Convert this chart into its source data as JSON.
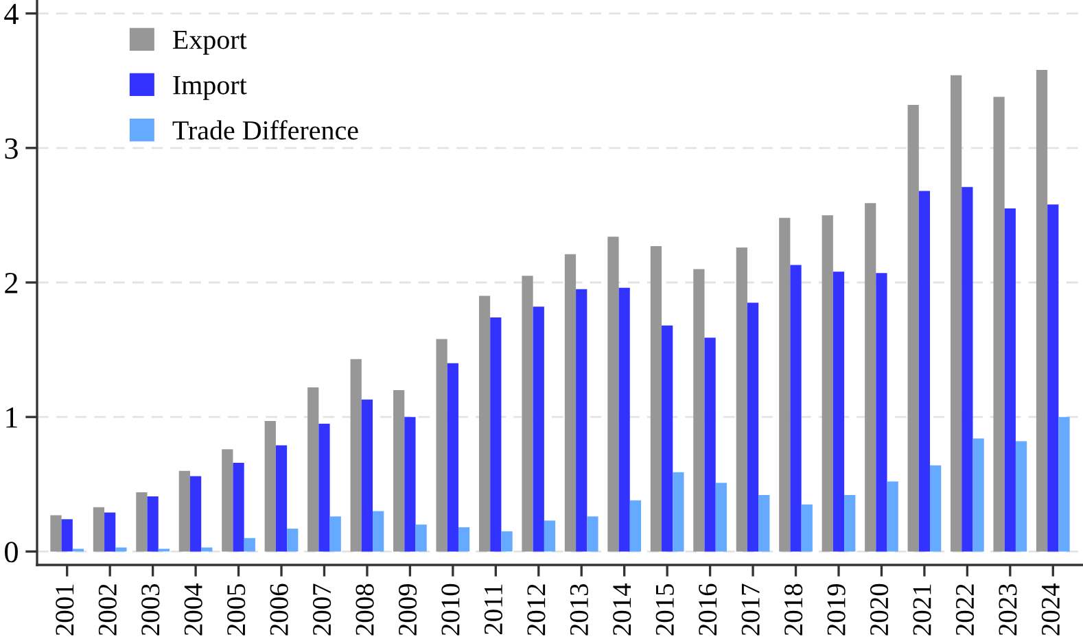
{
  "chart_data": {
    "type": "bar",
    "categories": [
      "2001",
      "2002",
      "2003",
      "2004",
      "2005",
      "2006",
      "2007",
      "2008",
      "2009",
      "2010",
      "2011",
      "2012",
      "2013",
      "2014",
      "2015",
      "2016",
      "2017",
      "2018",
      "2019",
      "2020",
      "2021",
      "2022",
      "2023",
      "2024"
    ],
    "series": [
      {
        "name": "Export",
        "color": "#979797",
        "values": [
          0.27,
          0.33,
          0.44,
          0.6,
          0.76,
          0.97,
          1.22,
          1.43,
          1.2,
          1.58,
          1.9,
          2.05,
          2.21,
          2.34,
          2.27,
          2.1,
          2.26,
          2.48,
          2.5,
          2.59,
          3.32,
          3.54,
          3.38,
          3.58
        ]
      },
      {
        "name": "Import",
        "color": "#3333ff",
        "values": [
          0.24,
          0.29,
          0.41,
          0.56,
          0.66,
          0.79,
          0.95,
          1.13,
          1.0,
          1.4,
          1.74,
          1.82,
          1.95,
          1.96,
          1.68,
          1.59,
          1.85,
          2.13,
          2.08,
          2.07,
          2.68,
          2.71,
          2.55,
          2.58
        ]
      },
      {
        "name": "Trade Difference",
        "color": "#66aaff",
        "values": [
          0.02,
          0.03,
          0.02,
          0.03,
          0.1,
          0.17,
          0.26,
          0.3,
          0.2,
          0.18,
          0.15,
          0.23,
          0.26,
          0.38,
          0.59,
          0.51,
          0.42,
          0.35,
          0.42,
          0.52,
          0.64,
          0.84,
          0.82,
          1.0
        ]
      }
    ],
    "ylim": [
      -0.1,
      4.1
    ],
    "yticks": [
      0,
      1,
      2,
      3,
      4
    ],
    "grid": "y",
    "legend": "top left"
  }
}
